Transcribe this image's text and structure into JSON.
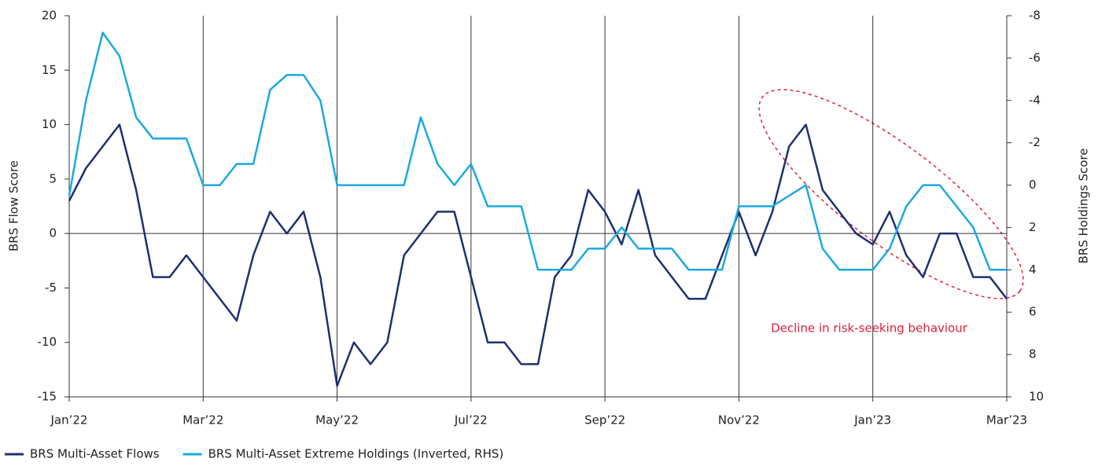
{
  "chart_data": {
    "type": "line",
    "categories": [
      "Jan’22",
      null,
      null,
      null,
      null,
      null,
      null,
      null,
      "Mar’22",
      null,
      null,
      null,
      null,
      null,
      null,
      null,
      "May’22",
      null,
      null,
      null,
      null,
      null,
      null,
      null,
      "Jul’22",
      null,
      null,
      null,
      null,
      null,
      null,
      null,
      "Sep’22",
      null,
      null,
      null,
      null,
      null,
      null,
      null,
      "Nov’22",
      null,
      null,
      null,
      null,
      null,
      null,
      null,
      "Jan’23",
      null,
      null,
      null,
      null,
      null,
      null,
      null,
      "Mar’23"
    ],
    "y_label": "BRS Flow Score",
    "y2_label": "BRS Holdings Score",
    "ylim": [
      -15,
      20
    ],
    "yticks": [
      -15,
      -10,
      -5,
      0,
      5,
      10,
      15,
      20
    ],
    "y2lim": [
      10,
      -8
    ],
    "y2ticks": [
      10,
      8,
      6,
      4,
      2,
      0,
      -2,
      -4,
      -6,
      -8
    ],
    "grid": "x",
    "legend": "bottom-left",
    "annotation": "Decline in risk-seeking behaviour",
    "series": [
      {
        "name": "BRS Multi-Asset Flows",
        "color": "#1f3070",
        "axis": "y",
        "values": [
          3,
          6,
          8,
          10,
          4,
          -4,
          -4,
          -2,
          -4,
          -6,
          -8,
          -2,
          2,
          0,
          2,
          -4,
          -14,
          -10,
          -12,
          -10,
          -2,
          0,
          2,
          2,
          -4,
          -10,
          -10,
          -12,
          -12,
          -4,
          -2,
          4,
          2,
          -1,
          4,
          -2,
          -4,
          -6,
          -6,
          -2,
          2,
          -2,
          2,
          8,
          10,
          4,
          2,
          0,
          -1,
          2,
          -2,
          -4,
          0,
          0,
          -4,
          -4,
          -6
        ]
      },
      {
        "name": "BRS Multi-Asset Extreme Holdings (Inverted, RHS)",
        "color": "#1ba9e0",
        "axis": "y2",
        "values": [
          0.5,
          -4,
          -7.2,
          -6.1,
          -3.2,
          -2.2,
          -2.2,
          -2.2,
          0,
          0,
          -1,
          -1,
          -4.5,
          -5.2,
          -5.2,
          -4,
          0,
          0,
          0,
          0,
          0,
          -3.2,
          -1,
          0,
          -1,
          1,
          1,
          1,
          4,
          4,
          4,
          3,
          3,
          2,
          3,
          3,
          3,
          4,
          4,
          4,
          1,
          1,
          1,
          0.5,
          0,
          3,
          4,
          4,
          4,
          3,
          1,
          0,
          0,
          1,
          2,
          4,
          4
        ]
      }
    ]
  }
}
